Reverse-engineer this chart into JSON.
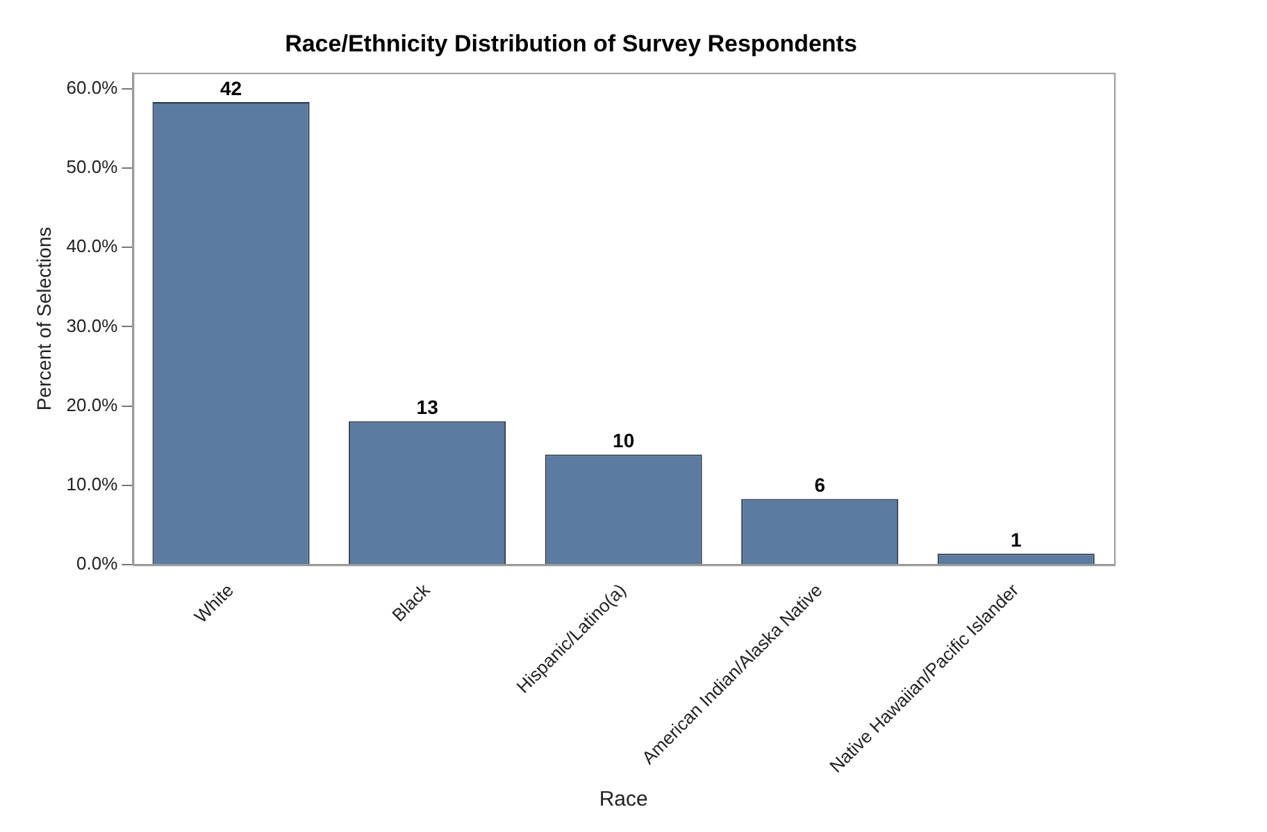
{
  "chart_data": {
    "type": "bar",
    "title": "Race/Ethnicity Distribution of Survey Respondents",
    "xlabel": "Race",
    "ylabel": "Percent of Selections",
    "categories": [
      "White",
      "Black",
      "Hispanic/Latino(a)",
      "American Indian/Alaska Native",
      "Native Hawaiian/Pacific Islander"
    ],
    "values": [
      58.3,
      18.1,
      13.9,
      8.3,
      1.4
    ],
    "annotations": [
      {
        "text": "42",
        "x": "White",
        "y": 58.3
      },
      {
        "text": "13",
        "x": "Black",
        "y": 18.1
      },
      {
        "text": "10",
        "x": "Hispanic/Latino(a)",
        "y": 13.9
      },
      {
        "text": "6",
        "x": "American Indian/Alaska Native",
        "y": 8.3
      },
      {
        "text": "1",
        "x": "Native Hawaiian/Pacific Islander",
        "y": 1.4
      }
    ],
    "color": "#5b7ba1",
    "ylim": [
      0,
      62
    ],
    "yticks": [
      {
        "value": 0,
        "label": "0.0%"
      },
      {
        "value": 10,
        "label": "10.0%"
      },
      {
        "value": 20,
        "label": "20.0%"
      },
      {
        "value": 30,
        "label": "30.0%"
      },
      {
        "value": 40,
        "label": "40.0%"
      },
      {
        "value": 50,
        "label": "50.0%"
      },
      {
        "value": 60,
        "label": "60.0%"
      }
    ],
    "grid": false,
    "legend": false
  }
}
